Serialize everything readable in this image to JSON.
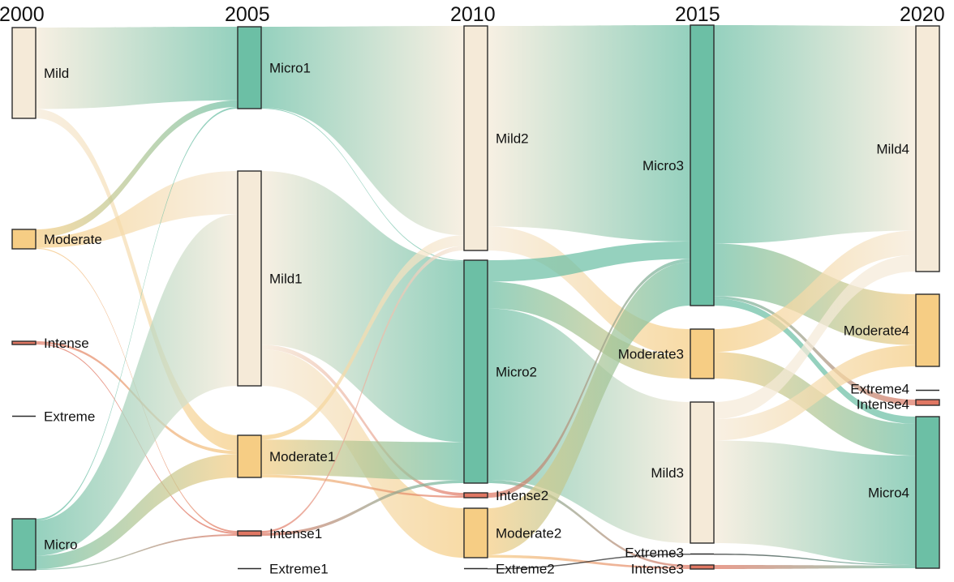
{
  "diagram": {
    "type": "sankey",
    "columns": [
      "2000",
      "2005",
      "2010",
      "2015",
      "2020"
    ],
    "colors": {
      "Mild": "#f5ead8",
      "Moderate": "#f6cd84",
      "Intense": "#e07763",
      "Extreme": "#222222",
      "Micro": "#6cbfa5",
      "node_stroke": "#2b2b2b"
    },
    "nodes": [
      {
        "id": "Mild",
        "label": "Mild",
        "column": 0,
        "category": "Mild"
      },
      {
        "id": "Moderate",
        "label": "Moderate",
        "column": 0,
        "category": "Moderate"
      },
      {
        "id": "Intense",
        "label": "Intense",
        "column": 0,
        "category": "Intense"
      },
      {
        "id": "Extreme",
        "label": "Extreme",
        "column": 0,
        "category": "Extreme"
      },
      {
        "id": "Micro",
        "label": "Micro",
        "column": 0,
        "category": "Micro"
      },
      {
        "id": "Micro1",
        "label": "Micro1",
        "column": 1,
        "category": "Micro"
      },
      {
        "id": "Mild1",
        "label": "Mild1",
        "column": 1,
        "category": "Mild"
      },
      {
        "id": "Moderate1",
        "label": "Moderate1",
        "column": 1,
        "category": "Moderate"
      },
      {
        "id": "Intense1",
        "label": "Intense1",
        "column": 1,
        "category": "Intense"
      },
      {
        "id": "Extreme1",
        "label": "Extreme1",
        "column": 1,
        "category": "Extreme"
      },
      {
        "id": "Mild2",
        "label": "Mild2",
        "column": 2,
        "category": "Mild"
      },
      {
        "id": "Micro2",
        "label": "Micro2",
        "column": 2,
        "category": "Micro"
      },
      {
        "id": "Intense2",
        "label": "Intense2",
        "column": 2,
        "category": "Intense"
      },
      {
        "id": "Moderate2",
        "label": "Moderate2",
        "column": 2,
        "category": "Moderate"
      },
      {
        "id": "Extreme2",
        "label": "Extreme2",
        "column": 2,
        "category": "Extreme"
      },
      {
        "id": "Micro3",
        "label": "Micro3",
        "column": 3,
        "category": "Micro"
      },
      {
        "id": "Moderate3",
        "label": "Moderate3",
        "column": 3,
        "category": "Moderate"
      },
      {
        "id": "Mild3",
        "label": "Mild3",
        "column": 3,
        "category": "Mild"
      },
      {
        "id": "Extreme3",
        "label": "Extreme3",
        "column": 3,
        "category": "Extreme"
      },
      {
        "id": "Intense3",
        "label": "Intense3",
        "column": 3,
        "category": "Intense"
      },
      {
        "id": "Mild4",
        "label": "Mild4",
        "column": 4,
        "category": "Mild"
      },
      {
        "id": "Moderate4",
        "label": "Moderate4",
        "column": 4,
        "category": "Moderate"
      },
      {
        "id": "Extreme4",
        "label": "Extreme4",
        "column": 4,
        "category": "Extreme"
      },
      {
        "id": "Intense4",
        "label": "Intense4",
        "column": 4,
        "category": "Intense"
      },
      {
        "id": "Micro4",
        "label": "Micro4",
        "column": 4,
        "category": "Micro"
      }
    ],
    "links": [
      {
        "source": "Mild",
        "target": "Micro1",
        "value": 88
      },
      {
        "source": "Mild",
        "target": "Moderate1",
        "value": 10
      },
      {
        "source": "Moderate",
        "target": "Micro1",
        "value": 8
      },
      {
        "source": "Moderate",
        "target": "Mild1",
        "value": 10
      },
      {
        "source": "Moderate",
        "target": "Intense1",
        "value": 1
      },
      {
        "source": "Intense",
        "target": "Moderate1",
        "value": 2
      },
      {
        "source": "Intense",
        "target": "Intense1",
        "value": 1
      },
      {
        "source": "Micro",
        "target": "Mild1",
        "value": 40
      },
      {
        "source": "Micro",
        "target": "Moderate1",
        "value": 15
      },
      {
        "source": "Micro",
        "target": "Micro1",
        "value": 2
      },
      {
        "source": "Micro",
        "target": "Intense1",
        "value": 1
      },
      {
        "source": "Micro1",
        "target": "Mild2",
        "value": 96
      },
      {
        "source": "Micro1",
        "target": "Micro2",
        "value": 1
      },
      {
        "source": "Mild1",
        "target": "Micro2",
        "value": 190
      },
      {
        "source": "Mild1",
        "target": "Moderate2",
        "value": 40
      },
      {
        "source": "Mild1",
        "target": "Intense2",
        "value": 5
      },
      {
        "source": "Moderate1",
        "target": "Micro2",
        "value": 40
      },
      {
        "source": "Moderate1",
        "target": "Mild2",
        "value": 5
      },
      {
        "source": "Moderate1",
        "target": "Intense2",
        "value": 3
      },
      {
        "source": "Intense1",
        "target": "Micro2",
        "value": 3
      },
      {
        "source": "Intense1",
        "target": "Mild2",
        "value": 2
      },
      {
        "source": "Mild2",
        "target": "Micro3",
        "value": 250
      },
      {
        "source": "Mild2",
        "target": "Moderate3",
        "value": 30
      },
      {
        "source": "Micro2",
        "target": "Moderate3",
        "value": 25
      },
      {
        "source": "Micro2",
        "target": "Mild3",
        "value": 160
      },
      {
        "source": "Micro2",
        "target": "Micro3",
        "value": 20
      },
      {
        "source": "Micro2",
        "target": "Intense3",
        "value": 3
      },
      {
        "source": "Intense2",
        "target": "Micro3",
        "value": 4
      },
      {
        "source": "Moderate2",
        "target": "Micro3",
        "value": 50
      },
      {
        "source": "Moderate2",
        "target": "Intense3",
        "value": 3
      },
      {
        "source": "Extreme2",
        "target": "Extreme3",
        "value": 1
      },
      {
        "source": "Micro3",
        "target": "Mild4",
        "value": 250
      },
      {
        "source": "Micro3",
        "target": "Moderate4",
        "value": 60
      },
      {
        "source": "Micro3",
        "target": "Micro4",
        "value": 8
      },
      {
        "source": "Micro3",
        "target": "Intense4",
        "value": 3
      },
      {
        "source": "Moderate3",
        "target": "Mild4",
        "value": 30
      },
      {
        "source": "Moderate3",
        "target": "Micro4",
        "value": 35
      },
      {
        "source": "Mild3",
        "target": "Mild4",
        "value": 20
      },
      {
        "source": "Mild3",
        "target": "Moderate4",
        "value": 25
      },
      {
        "source": "Mild3",
        "target": "Micro4",
        "value": 120
      },
      {
        "source": "Intense3",
        "target": "Micro4",
        "value": 3
      },
      {
        "source": "Extreme3",
        "target": "Micro4",
        "value": 1
      }
    ]
  }
}
